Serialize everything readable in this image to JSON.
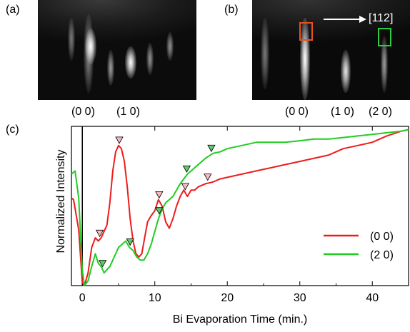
{
  "panels": {
    "a": {
      "label": "(a)",
      "indices": [
        "(0 0)",
        "(1 0)"
      ]
    },
    "b": {
      "label": "(b)",
      "direction": "[11\u00052]",
      "indices": [
        "(0 0)",
        "(1 0)",
        "(2 0)"
      ]
    },
    "c": {
      "label": "(c)"
    }
  },
  "colors": {
    "series_00": "#ee1c1c",
    "series_20": "#22cc22",
    "box_00": "#e8501e",
    "box_20": "#2ecc40",
    "marker_00": "#f6b7bf",
    "marker_20": "#62c86a"
  },
  "chart_data": {
    "type": "line",
    "xlabel": "Bi Evaporation Time (min.)",
    "ylabel": "Normalized Intensity",
    "xlim": [
      -1.5,
      45
    ],
    "ylim": [
      0,
      1
    ],
    "xticks": [
      0,
      10,
      20,
      30,
      40
    ],
    "vertical_line_x": 0,
    "grid": false,
    "legend_position": "lower-right",
    "series": [
      {
        "name": "(0 0)",
        "color": "#ee1c1c",
        "x": [
          -1.5,
          -1.2,
          -0.5,
          0,
          0.3,
          0.8,
          1.3,
          1.8,
          2.2,
          2.6,
          3.0,
          3.4,
          3.8,
          4.2,
          4.6,
          5.0,
          5.4,
          5.8,
          6.2,
          6.6,
          7.0,
          7.4,
          7.8,
          8.2,
          8.6,
          9.0,
          9.5,
          10.0,
          10.5,
          11.0,
          11.5,
          12.0,
          12.5,
          13.0,
          13.5,
          14.0,
          14.5,
          15.0,
          15.5,
          16.0,
          17.0,
          18.0,
          19.0,
          20.0,
          22.0,
          24.0,
          26.0,
          28.0,
          30.0,
          32.0,
          34.0,
          36.0,
          38.0,
          40.0,
          42.0,
          44.0,
          45.0
        ],
        "values": [
          0.55,
          0.54,
          0.35,
          0.02,
          0.0,
          0.08,
          0.24,
          0.3,
          0.28,
          0.3,
          0.34,
          0.38,
          0.52,
          0.72,
          0.84,
          0.88,
          0.86,
          0.78,
          0.62,
          0.42,
          0.28,
          0.2,
          0.18,
          0.2,
          0.3,
          0.4,
          0.44,
          0.47,
          0.54,
          0.5,
          0.4,
          0.36,
          0.42,
          0.5,
          0.56,
          0.6,
          0.56,
          0.6,
          0.6,
          0.62,
          0.64,
          0.65,
          0.67,
          0.68,
          0.7,
          0.72,
          0.74,
          0.76,
          0.78,
          0.8,
          0.82,
          0.86,
          0.88,
          0.9,
          0.94,
          0.97,
          0.98
        ]
      },
      {
        "name": "(2 0)",
        "color": "#22cc22",
        "x": [
          -1.5,
          -1.0,
          -0.5,
          0,
          0.3,
          0.8,
          1.3,
          1.8,
          2.2,
          2.6,
          3.0,
          3.4,
          3.8,
          4.2,
          4.6,
          5.0,
          5.5,
          6.0,
          6.5,
          7.0,
          7.5,
          8.0,
          8.5,
          9.0,
          9.5,
          10.0,
          10.5,
          11.0,
          11.5,
          12.0,
          12.5,
          13.0,
          13.5,
          14.0,
          14.5,
          15.0,
          16.0,
          17.0,
          18.0,
          19.0,
          20.0,
          22.0,
          24.0,
          26.0,
          28.0,
          30.0,
          32.0,
          34.0,
          36.0,
          38.0,
          40.0,
          42.0,
          44.0,
          45.0
        ],
        "values": [
          0.7,
          0.72,
          0.55,
          0.1,
          0.0,
          0.03,
          0.12,
          0.2,
          0.14,
          0.12,
          0.08,
          0.1,
          0.12,
          0.16,
          0.2,
          0.24,
          0.26,
          0.28,
          0.24,
          0.22,
          0.18,
          0.16,
          0.16,
          0.2,
          0.26,
          0.34,
          0.42,
          0.48,
          0.52,
          0.54,
          0.56,
          0.6,
          0.64,
          0.67,
          0.7,
          0.72,
          0.76,
          0.8,
          0.83,
          0.84,
          0.86,
          0.88,
          0.9,
          0.9,
          0.9,
          0.91,
          0.92,
          0.92,
          0.93,
          0.94,
          0.95,
          0.96,
          0.97,
          0.98
        ]
      }
    ],
    "markers": {
      "series_00": [
        2.4,
        5.1,
        10.6,
        14.2,
        17.3
      ],
      "series_20": [
        2.8,
        6.6,
        10.6,
        14.4,
        17.8
      ]
    }
  }
}
